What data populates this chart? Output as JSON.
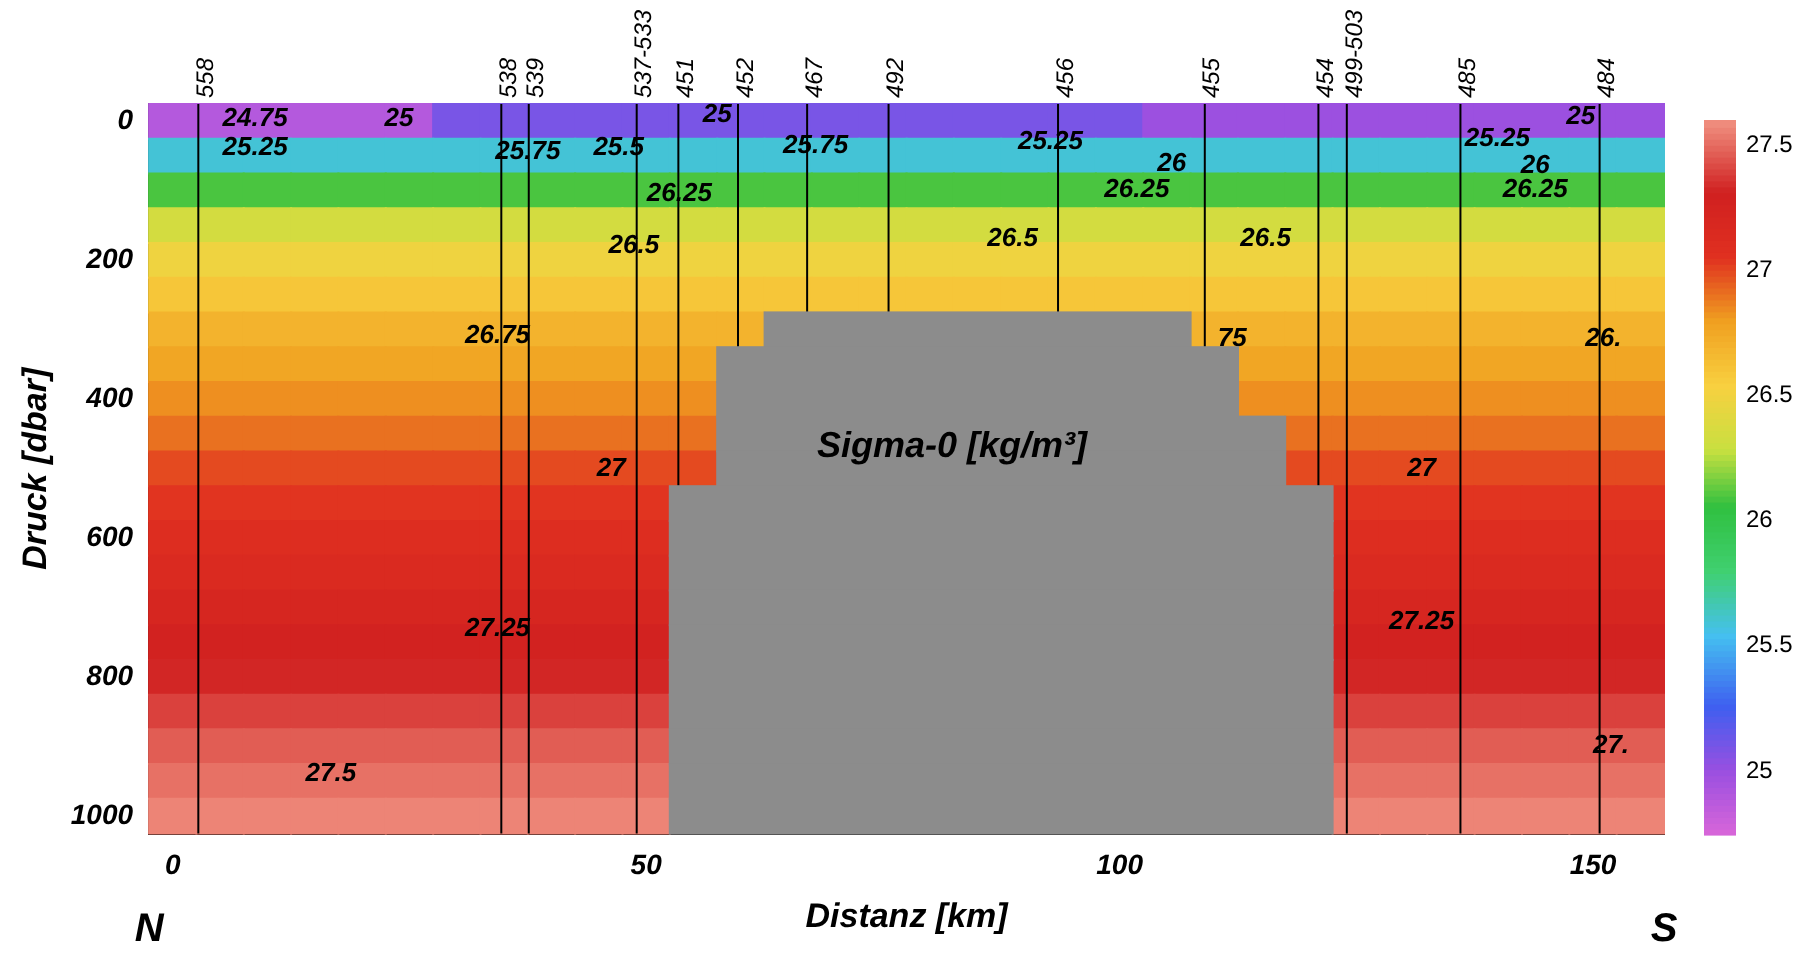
{
  "chart_data": {
    "type": "heatmap",
    "title": "Sigma-0 [kg/m³]",
    "xlabel": "Distanz [km]",
    "ylabel": "Druck [dbar]",
    "clim": [
      24.75,
      27.6
    ],
    "grid": "x",
    "cticks": [
      25,
      25.5,
      26,
      26.5,
      27,
      27.5
    ],
    "categories": [
      "0",
      null,
      null,
      null,
      null,
      null,
      null,
      null,
      null,
      null,
      "50",
      null,
      null,
      null,
      null,
      null,
      null,
      null,
      null,
      null,
      "100",
      null,
      null,
      null,
      null,
      null,
      null,
      null,
      null,
      null,
      "150",
      null
    ],
    "y_categories": [
      "0",
      null,
      null,
      null,
      "200",
      null,
      null,
      null,
      "400",
      null,
      null,
      null,
      "600",
      null,
      null,
      null,
      "800",
      null,
      null,
      null,
      "1000"
    ],
    "cells": [
      [
        24.9,
        24.9,
        24.9,
        24.9,
        24.9,
        24.9,
        25.1,
        25.1,
        25.1,
        25.1,
        25.1,
        25.1,
        25.1,
        25.1,
        25.1,
        25.1,
        25.1,
        25.1,
        25.1,
        25.1,
        25.1,
        25.0,
        25.0,
        25.0,
        25.0,
        25.0,
        25.0,
        25.0,
        25.0,
        25.0,
        25.0,
        25.0
      ],
      [
        25.6,
        25.6,
        25.6,
        25.6,
        25.6,
        25.6,
        25.6,
        25.6,
        25.6,
        25.6,
        25.6,
        25.6,
        25.6,
        25.6,
        25.6,
        25.6,
        25.6,
        25.6,
        25.6,
        25.6,
        25.6,
        25.6,
        25.6,
        25.6,
        25.6,
        25.6,
        25.6,
        25.6,
        25.6,
        25.6,
        25.6,
        25.6
      ],
      [
        26.1,
        26.1,
        26.1,
        26.1,
        26.1,
        26.1,
        26.1,
        26.1,
        26.1,
        26.1,
        26.1,
        26.1,
        26.1,
        26.1,
        26.1,
        26.1,
        26.1,
        26.1,
        26.1,
        26.1,
        26.1,
        26.1,
        26.1,
        26.1,
        26.1,
        26.1,
        26.1,
        26.1,
        26.1,
        26.1,
        26.1,
        26.1
      ],
      [
        26.35,
        26.35,
        26.35,
        26.35,
        26.35,
        26.35,
        26.35,
        26.35,
        26.35,
        26.35,
        26.35,
        26.35,
        26.35,
        26.35,
        26.35,
        26.35,
        26.35,
        26.35,
        26.35,
        26.35,
        26.35,
        26.35,
        26.35,
        26.35,
        26.35,
        26.35,
        26.35,
        26.35,
        26.35,
        26.35,
        26.35,
        26.35
      ],
      [
        26.5,
        26.5,
        26.5,
        26.5,
        26.5,
        26.5,
        26.5,
        26.5,
        26.5,
        26.5,
        26.5,
        26.5,
        26.5,
        26.5,
        26.5,
        26.5,
        26.5,
        26.5,
        26.5,
        26.5,
        26.5,
        26.5,
        26.5,
        26.5,
        26.5,
        26.5,
        26.5,
        26.5,
        26.5,
        26.5,
        26.5,
        26.5
      ],
      [
        26.6,
        26.6,
        26.6,
        26.6,
        26.6,
        26.6,
        26.6,
        26.6,
        26.6,
        26.6,
        26.6,
        26.6,
        26.6,
        26.6,
        26.6,
        26.6,
        26.6,
        26.6,
        26.6,
        26.6,
        26.6,
        26.6,
        26.6,
        26.6,
        26.6,
        26.6,
        26.6,
        26.6,
        26.6,
        26.6,
        26.6,
        26.6
      ],
      [
        26.7,
        26.7,
        26.7,
        26.7,
        26.7,
        26.7,
        26.7,
        26.7,
        26.7,
        26.7,
        26.7,
        26.7,
        26.7,
        null,
        null,
        null,
        null,
        null,
        null,
        null,
        null,
        null,
        26.7,
        26.7,
        26.7,
        26.7,
        26.7,
        26.7,
        26.7,
        26.7,
        26.7,
        26.7
      ],
      [
        26.77,
        26.77,
        26.77,
        26.77,
        26.77,
        26.77,
        26.77,
        26.77,
        26.77,
        26.77,
        26.77,
        26.77,
        null,
        null,
        null,
        null,
        null,
        null,
        null,
        null,
        null,
        null,
        null,
        26.77,
        26.77,
        26.77,
        26.77,
        26.77,
        26.77,
        26.77,
        26.77,
        26.77
      ],
      [
        26.84,
        26.84,
        26.84,
        26.84,
        26.84,
        26.84,
        26.84,
        26.84,
        26.84,
        26.84,
        26.84,
        26.84,
        null,
        null,
        null,
        null,
        null,
        null,
        null,
        null,
        null,
        null,
        null,
        26.84,
        26.84,
        26.84,
        26.84,
        26.84,
        26.84,
        26.84,
        26.84,
        26.84
      ],
      [
        26.91,
        26.91,
        26.91,
        26.91,
        26.91,
        26.91,
        26.91,
        26.91,
        26.91,
        26.91,
        26.91,
        26.91,
        null,
        null,
        null,
        null,
        null,
        null,
        null,
        null,
        null,
        null,
        null,
        null,
        26.91,
        26.91,
        26.91,
        26.91,
        26.91,
        26.91,
        26.91,
        26.91
      ],
      [
        27.0,
        27.0,
        27.0,
        27.0,
        27.0,
        27.0,
        27.0,
        27.0,
        27.0,
        27.0,
        27.0,
        27.0,
        null,
        null,
        null,
        null,
        null,
        null,
        null,
        null,
        null,
        null,
        null,
        null,
        27.0,
        27.0,
        27.0,
        27.0,
        27.0,
        27.0,
        27.0,
        27.0
      ],
      [
        27.05,
        27.05,
        27.05,
        27.05,
        27.05,
        27.05,
        27.05,
        27.05,
        27.05,
        27.05,
        27.05,
        null,
        null,
        null,
        null,
        null,
        null,
        null,
        null,
        null,
        null,
        null,
        null,
        null,
        null,
        27.05,
        27.05,
        27.05,
        27.05,
        27.05,
        27.05,
        27.05
      ],
      [
        27.1,
        27.1,
        27.1,
        27.1,
        27.1,
        27.1,
        27.1,
        27.1,
        27.1,
        27.1,
        27.1,
        null,
        null,
        null,
        null,
        null,
        null,
        null,
        null,
        null,
        null,
        null,
        null,
        null,
        null,
        27.1,
        27.1,
        27.1,
        27.1,
        27.1,
        27.1,
        27.1
      ],
      [
        27.15,
        27.15,
        27.15,
        27.15,
        27.15,
        27.15,
        27.15,
        27.15,
        27.15,
        27.15,
        27.15,
        null,
        null,
        null,
        null,
        null,
        null,
        null,
        null,
        null,
        null,
        null,
        null,
        null,
        null,
        27.15,
        27.15,
        27.15,
        27.15,
        27.15,
        27.15,
        27.15
      ],
      [
        27.22,
        27.22,
        27.22,
        27.22,
        27.22,
        27.22,
        27.22,
        27.22,
        27.22,
        27.22,
        27.22,
        null,
        null,
        null,
        null,
        null,
        null,
        null,
        null,
        null,
        null,
        null,
        null,
        null,
        null,
        27.22,
        27.22,
        27.22,
        27.22,
        27.22,
        27.22,
        27.22
      ],
      [
        27.28,
        27.28,
        27.28,
        27.28,
        27.28,
        27.28,
        27.28,
        27.28,
        27.28,
        27.28,
        27.28,
        null,
        null,
        null,
        null,
        null,
        null,
        null,
        null,
        null,
        null,
        null,
        null,
        null,
        null,
        27.28,
        27.28,
        27.28,
        27.28,
        27.28,
        27.28,
        27.28
      ],
      [
        27.33,
        27.33,
        27.33,
        27.33,
        27.33,
        27.33,
        27.33,
        27.33,
        27.33,
        27.33,
        27.33,
        null,
        null,
        null,
        null,
        null,
        null,
        null,
        null,
        null,
        null,
        null,
        null,
        null,
        null,
        27.33,
        27.33,
        27.33,
        27.33,
        27.33,
        27.33,
        27.33
      ],
      [
        27.4,
        27.4,
        27.4,
        27.4,
        27.4,
        27.4,
        27.4,
        27.4,
        27.4,
        27.4,
        27.4,
        null,
        null,
        null,
        null,
        null,
        null,
        null,
        null,
        null,
        null,
        null,
        null,
        null,
        null,
        27.4,
        27.4,
        27.4,
        27.4,
        27.4,
        27.4,
        27.4
      ],
      [
        27.47,
        27.47,
        27.47,
        27.47,
        27.47,
        27.47,
        27.47,
        27.47,
        27.47,
        27.47,
        27.47,
        null,
        null,
        null,
        null,
        null,
        null,
        null,
        null,
        null,
        null,
        null,
        null,
        null,
        null,
        27.47,
        27.47,
        27.47,
        27.47,
        27.47,
        27.47,
        27.47
      ],
      [
        27.52,
        27.52,
        27.52,
        27.52,
        27.52,
        27.52,
        27.52,
        27.52,
        27.52,
        27.52,
        27.52,
        null,
        null,
        null,
        null,
        null,
        null,
        null,
        null,
        null,
        null,
        null,
        null,
        null,
        null,
        27.52,
        27.52,
        27.52,
        27.52,
        27.52,
        27.52,
        27.52
      ],
      [
        27.57,
        27.57,
        27.57,
        27.57,
        27.57,
        27.57,
        27.57,
        27.57,
        27.57,
        27.57,
        27.57,
        null,
        null,
        null,
        null,
        null,
        null,
        null,
        null,
        null,
        null,
        null,
        null,
        null,
        null,
        27.57,
        27.57,
        27.57,
        27.57,
        27.57,
        27.57,
        27.57
      ]
    ],
    "annotations": [
      "N",
      "S",
      "558",
      "538",
      "539",
      "537-533",
      "451",
      "452",
      "467",
      "492",
      "456",
      "455",
      "454",
      "499-503",
      "485",
      "484",
      "24.75",
      "25",
      "25.25",
      "25.75",
      "25.5",
      "26.25",
      "26.5",
      "26.75",
      "27",
      "27.25",
      "27.5",
      "25",
      "25.75",
      "25.25",
      "26.25",
      "26.5",
      "26.5",
      "26",
      "26.25",
      "26",
      "25.25",
      "25",
      "27",
      "27.25",
      "75",
      "26.",
      "27."
    ]
  }
}
